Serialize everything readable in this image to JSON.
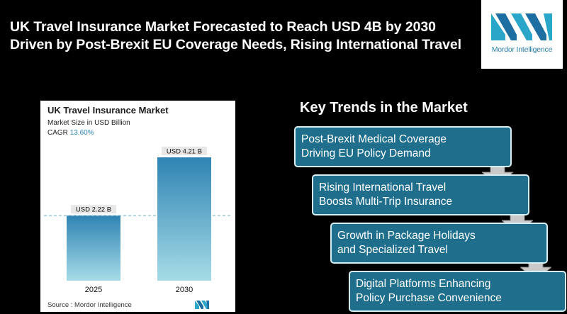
{
  "headline": {
    "line1": "UK Travel Insurance Market Forecasted to Reach USD 4B by 2030",
    "line2": "Driven by Post-Brexit EU Coverage Needs, Rising International Travel"
  },
  "logo": {
    "text": "Mordor Intelligence",
    "icon": "mordor-intelligence-logo"
  },
  "chart": {
    "title": "UK Travel Insurance Market",
    "subtitle": "Market Size in USD Billion",
    "cagr_label": "CAGR",
    "cagr_value": "13.60%",
    "source": "Source :  Mordor Intelligence"
  },
  "chart_data": {
    "type": "bar",
    "title": "UK Travel Insurance Market",
    "ylabel": "Market Size in USD Billion",
    "categories": [
      "2025",
      "2030"
    ],
    "values": [
      2.22,
      4.21
    ],
    "data_labels": [
      "USD 2.22 B",
      "USD 4.21 B"
    ],
    "ylim": [
      0,
      4.21
    ],
    "grid": false,
    "reference_line": 2.22,
    "colors": {
      "bar_top": "#2f84b4",
      "bar_bottom": "#a6dbe6",
      "label_bg": "#e7e7e7",
      "dash": "#6fb0cf"
    }
  },
  "trends": {
    "title": "Key Trends in the Market",
    "items": [
      {
        "line1": "Post-Brexit Medical Coverage",
        "line2": "Driving EU Policy Demand"
      },
      {
        "line1": "Rising International Travel",
        "line2": "Boosts Multi-Trip Insurance"
      },
      {
        "line1": "Growth in Package Holidays",
        "line2": "and Specialized Travel"
      },
      {
        "line1": "Digital Platforms Enhancing",
        "line2": "Policy Purchase Convenience"
      }
    ],
    "colors": {
      "box": "#1f6e8c",
      "border": "#d7eef5",
      "arrow": "#c9c9c9"
    }
  }
}
